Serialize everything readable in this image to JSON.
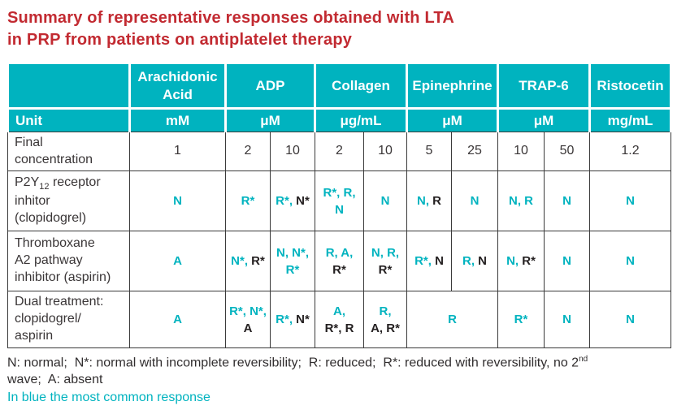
{
  "title": {
    "line1": "Summary of representative responses obtained with LTA",
    "line2": "in PRP from patients on antiplatelet therapy"
  },
  "colors": {
    "accent_teal": "#00b3bf",
    "title_red": "#c22a31",
    "dark_text": "#3a3637",
    "black_response": "#242021",
    "header_text": "#ffffff"
  },
  "table": {
    "unit_label": "Unit",
    "columns": [
      {
        "label": "Arachidonic Acid",
        "unit": "mM",
        "span": 1
      },
      {
        "label": "ADP",
        "unit": "μM",
        "span": 2
      },
      {
        "label": "Collagen",
        "unit": "μg/mL",
        "span": 2
      },
      {
        "label": "Epinephrine",
        "unit": "μM",
        "span": 2
      },
      {
        "label": "TRAP-6",
        "unit": "μM",
        "span": 2
      },
      {
        "label": "Ristocetin",
        "unit": "mg/mL",
        "span": 1
      }
    ],
    "rows": [
      {
        "name": "final-concentration",
        "kind": "conc",
        "label": [
          {
            "t": "Final"
          },
          {
            "br": true
          },
          {
            "t": "concentration"
          }
        ],
        "cells": [
          {
            "lines": [
              [
                {
                  "t": "1",
                  "c": "k"
                }
              ]
            ]
          },
          {
            "lines": [
              [
                {
                  "t": "2",
                  "c": "k"
                }
              ]
            ]
          },
          {
            "lines": [
              [
                {
                  "t": "10",
                  "c": "k"
                }
              ]
            ]
          },
          {
            "lines": [
              [
                {
                  "t": "2",
                  "c": "k"
                }
              ]
            ]
          },
          {
            "lines": [
              [
                {
                  "t": "10",
                  "c": "k"
                }
              ]
            ]
          },
          {
            "lines": [
              [
                {
                  "t": "5",
                  "c": "k"
                }
              ]
            ]
          },
          {
            "lines": [
              [
                {
                  "t": "25",
                  "c": "k"
                }
              ]
            ]
          },
          {
            "lines": [
              [
                {
                  "t": "10",
                  "c": "k"
                }
              ]
            ]
          },
          {
            "lines": [
              [
                {
                  "t": "50",
                  "c": "k"
                }
              ]
            ]
          },
          {
            "lines": [
              [
                {
                  "t": "1.2",
                  "c": "k"
                }
              ]
            ]
          }
        ]
      },
      {
        "name": "p2y12-receptor-inhibitor-clopidogrel",
        "kind": "main",
        "label": [
          {
            "t": "P2Y"
          },
          {
            "t": "12",
            "sub": true
          },
          {
            "t": " receptor"
          },
          {
            "br": true
          },
          {
            "t": "inhitor"
          },
          {
            "br": true
          },
          {
            "t": "(clopidogrel)"
          }
        ],
        "cells": [
          {
            "lines": [
              [
                {
                  "t": "N",
                  "c": "t"
                }
              ]
            ]
          },
          {
            "lines": [
              [
                {
                  "t": "R*",
                  "c": "t"
                }
              ]
            ]
          },
          {
            "lines": [
              [
                {
                  "t": "R*, ",
                  "c": "t"
                },
                {
                  "t": "N*",
                  "c": "k"
                }
              ]
            ]
          },
          {
            "lines": [
              [
                {
                  "t": "R*, R,",
                  "c": "t"
                }
              ],
              [
                {
                  "t": "N",
                  "c": "t"
                }
              ]
            ]
          },
          {
            "lines": [
              [
                {
                  "t": "N",
                  "c": "t"
                }
              ]
            ]
          },
          {
            "lines": [
              [
                {
                  "t": "N, ",
                  "c": "t"
                },
                {
                  "t": "R",
                  "c": "k"
                }
              ]
            ]
          },
          {
            "lines": [
              [
                {
                  "t": "N",
                  "c": "t"
                }
              ]
            ]
          },
          {
            "lines": [
              [
                {
                  "t": "N, R",
                  "c": "t"
                }
              ]
            ]
          },
          {
            "lines": [
              [
                {
                  "t": "N",
                  "c": "t"
                }
              ]
            ]
          },
          {
            "lines": [
              [
                {
                  "t": "N",
                  "c": "t"
                }
              ]
            ]
          }
        ]
      },
      {
        "name": "thromboxane-a2-pathway-inhibitor-aspirin",
        "kind": "main",
        "label": [
          {
            "t": "Thromboxane"
          },
          {
            "br": true
          },
          {
            "t": "A2 pathway"
          },
          {
            "br": true
          },
          {
            "t": "inhibitor (aspirin)"
          }
        ],
        "cells": [
          {
            "lines": [
              [
                {
                  "t": "A",
                  "c": "t"
                }
              ]
            ]
          },
          {
            "lines": [
              [
                {
                  "t": "N*, ",
                  "c": "t"
                },
                {
                  "t": "R*",
                  "c": "k"
                }
              ]
            ]
          },
          {
            "lines": [
              [
                {
                  "t": "N, N*,",
                  "c": "t"
                }
              ],
              [
                {
                  "t": "R*",
                  "c": "t"
                }
              ]
            ]
          },
          {
            "lines": [
              [
                {
                  "t": "R, A,",
                  "c": "t"
                }
              ],
              [
                {
                  "t": "R*",
                  "c": "k"
                }
              ]
            ]
          },
          {
            "lines": [
              [
                {
                  "t": "N, R,",
                  "c": "t"
                }
              ],
              [
                {
                  "t": "R*",
                  "c": "k"
                }
              ]
            ]
          },
          {
            "lines": [
              [
                {
                  "t": "R*, ",
                  "c": "t"
                },
                {
                  "t": "N",
                  "c": "k"
                }
              ]
            ]
          },
          {
            "lines": [
              [
                {
                  "t": "R, ",
                  "c": "t"
                },
                {
                  "t": "N",
                  "c": "k"
                }
              ]
            ]
          },
          {
            "lines": [
              [
                {
                  "t": "N, ",
                  "c": "t"
                },
                {
                  "t": "R*",
                  "c": "k"
                }
              ]
            ]
          },
          {
            "lines": [
              [
                {
                  "t": "N",
                  "c": "t"
                }
              ]
            ]
          },
          {
            "lines": [
              [
                {
                  "t": "N",
                  "c": "t"
                }
              ]
            ]
          }
        ]
      },
      {
        "name": "dual-treatment-clopidogrel-aspirin",
        "kind": "dual",
        "label": [
          {
            "t": "Dual treatment:"
          },
          {
            "br": true
          },
          {
            "t": "clopidogrel/"
          },
          {
            "br": true
          },
          {
            "t": "aspirin"
          }
        ],
        "cells": [
          {
            "lines": [
              [
                {
                  "t": "A",
                  "c": "t"
                }
              ]
            ]
          },
          {
            "lines": [
              [
                {
                  "t": "R*, N*,",
                  "c": "t"
                }
              ],
              [
                {
                  "t": "A",
                  "c": "k"
                }
              ]
            ]
          },
          {
            "lines": [
              [
                {
                  "t": "R*, ",
                  "c": "t"
                },
                {
                  "t": "N*",
                  "c": "k"
                }
              ]
            ]
          },
          {
            "lines": [
              [
                {
                  "t": "A,",
                  "c": "t"
                }
              ],
              [
                {
                  "t": "R*, R",
                  "c": "k"
                }
              ]
            ]
          },
          {
            "lines": [
              [
                {
                  "t": "R,",
                  "c": "t"
                }
              ],
              [
                {
                  "t": "A, R*",
                  "c": "k"
                }
              ]
            ]
          },
          {
            "span": 2,
            "lines": [
              [
                {
                  "t": "R",
                  "c": "t"
                }
              ]
            ]
          },
          {
            "lines": [
              [
                {
                  "t": "R*",
                  "c": "t"
                }
              ]
            ]
          },
          {
            "lines": [
              [
                {
                  "t": "N",
                  "c": "t"
                }
              ]
            ]
          },
          {
            "lines": [
              [
                {
                  "t": "N",
                  "c": "t"
                }
              ]
            ]
          }
        ]
      }
    ]
  },
  "footnote": {
    "legend": [
      {
        "t": "N: normal;  N*: normal with incomplete reversibility;  R: reduced;  R*: reduced with reversibility, no 2"
      },
      {
        "t": "nd",
        "sup": true
      },
      {
        "t": "\nwave;  A: absent"
      }
    ],
    "note": "In blue the most common response"
  }
}
